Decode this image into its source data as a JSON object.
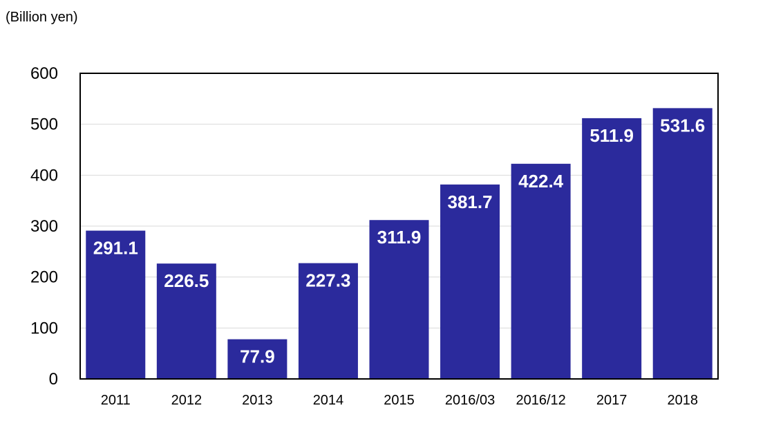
{
  "chart_data": {
    "type": "bar",
    "unit_label": "(Billion yen)",
    "categories": [
      "2011",
      "2012",
      "2013",
      "2014",
      "2015",
      "2016/03",
      "2016/12",
      "2017",
      "2018"
    ],
    "values": [
      291.1,
      226.5,
      77.9,
      227.3,
      311.9,
      381.7,
      422.4,
      511.9,
      531.6
    ],
    "data_labels": [
      "291.1",
      "226.5",
      "77.9",
      "227.3",
      "311.9",
      "381.7",
      "422.4",
      "511.9",
      "531.6"
    ],
    "y_ticks": [
      "0",
      "100",
      "200",
      "300",
      "400",
      "500",
      "600"
    ],
    "ylim": [
      0,
      600
    ],
    "grid": true,
    "bar_color": "#2b2a9c",
    "label_color": "#ffffff"
  }
}
